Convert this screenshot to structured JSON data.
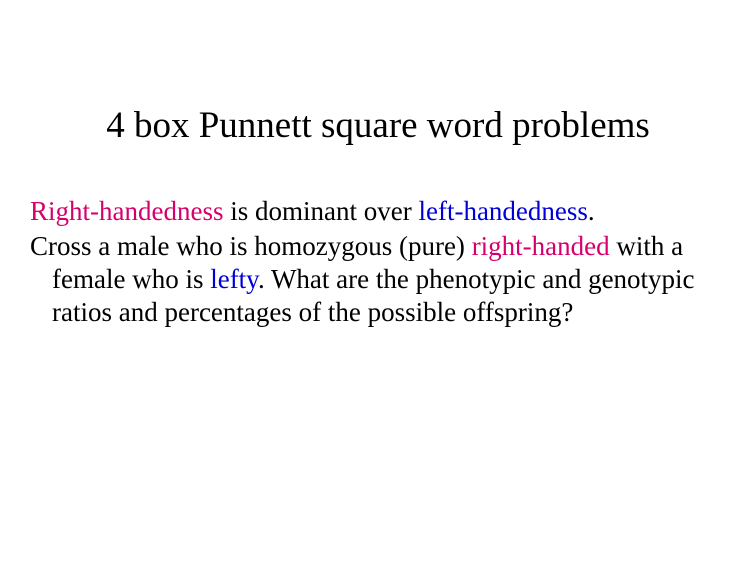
{
  "title": "4 box Punnett square word problems",
  "colors": {
    "text": "#000000",
    "background": "#ffffff",
    "magenta": "#d6006c",
    "blue": "#0000d6"
  },
  "typography": {
    "family": "Times New Roman",
    "title_fontsize": 37,
    "body_fontsize": 27
  },
  "body": {
    "p1": {
      "s1": "Right-handedness",
      "s2": " is dominant over ",
      "s3": "left-handedness",
      "s4": "."
    },
    "p2": {
      "s1": "Cross a male who is homozygous (pure) ",
      "s2": "right-handed",
      "s3": " with a female who is ",
      "s4": "lefty",
      "s5": ".  What are the phenotypic and genotypic ratios and percentages of the possible offspring?"
    }
  }
}
